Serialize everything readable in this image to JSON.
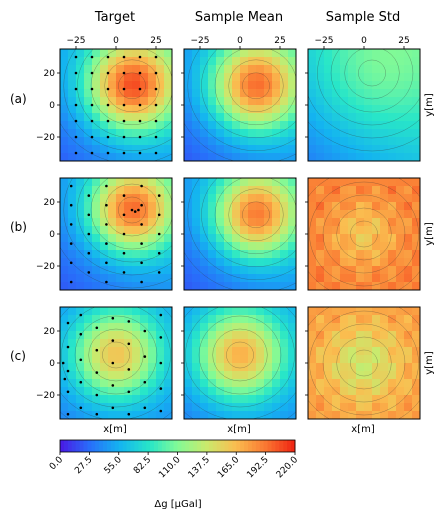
{
  "chart_data": {
    "type": "heatmap",
    "column_titles": [
      "Target",
      "Sample Mean",
      "Sample Std"
    ],
    "row_labels": [
      "(a)",
      "(b)",
      "(c)"
    ],
    "xlabel": "x[m]",
    "ylabel": "y[m]",
    "xlim": [
      -35,
      35
    ],
    "ylim": [
      -35,
      35
    ],
    "xticks": [
      -25,
      0,
      25
    ],
    "yticks": [
      -20,
      0,
      20
    ],
    "colormap": "rainbow",
    "colorbar": {
      "label": "Δg [μGal]",
      "min": 0,
      "max": 220,
      "ticks": [
        "0.0",
        "27.5",
        "55.0",
        "82.5",
        "110.0",
        "137.5",
        "165.0",
        "192.5",
        "220.0"
      ]
    },
    "fields": [
      [
        {
          "peak": [
            10,
            12
          ],
          "amp": 155,
          "spread": 20,
          "base": 45,
          "tilt": 0.35
        },
        {
          "peak": [
            10,
            12
          ],
          "amp": 150,
          "spread": 20,
          "base": 40,
          "tilt": 0.3
        },
        {
          "peak": [
            5,
            20
          ],
          "amp": 35,
          "spread": 30,
          "base": 60,
          "tilt": 0.4
        }
      ],
      [
        {
          "peak": [
            10,
            15
          ],
          "amp": 150,
          "spread": 19,
          "base": 40,
          "tilt": 0.3
        },
        {
          "peak": [
            10,
            12
          ],
          "amp": 145,
          "spread": 19,
          "base": 40,
          "tilt": 0.3
        },
        {
          "peak": [
            0,
            0
          ],
          "amp": -30,
          "spread": 15,
          "base": 190,
          "tilt": 0.0
        }
      ],
      [
        {
          "peak": [
            0,
            5
          ],
          "amp": 120,
          "spread": 20,
          "base": 40,
          "tilt": 0.1
        },
        {
          "peak": [
            0,
            5
          ],
          "amp": 130,
          "spread": 20,
          "base": 40,
          "tilt": 0.1
        },
        {
          "peak": [
            0,
            0
          ],
          "amp": -40,
          "spread": 18,
          "base": 180,
          "tilt": 0.0
        }
      ]
    ],
    "sample_points": [
      [
        [
          -25,
          -30
        ],
        [
          -25,
          -20
        ],
        [
          -25,
          -10
        ],
        [
          -25,
          0
        ],
        [
          -25,
          10
        ],
        [
          -25,
          20
        ],
        [
          -25,
          30
        ],
        [
          -15,
          -30
        ],
        [
          -15,
          -20
        ],
        [
          -15,
          -10
        ],
        [
          -15,
          0
        ],
        [
          -15,
          10
        ],
        [
          -15,
          20
        ],
        [
          -15,
          30
        ],
        [
          -5,
          -30
        ],
        [
          -5,
          -20
        ],
        [
          -5,
          -10
        ],
        [
          -5,
          0
        ],
        [
          -5,
          10
        ],
        [
          -5,
          20
        ],
        [
          -5,
          30
        ],
        [
          5,
          -30
        ],
        [
          5,
          -20
        ],
        [
          5,
          -10
        ],
        [
          5,
          0
        ],
        [
          5,
          10
        ],
        [
          5,
          20
        ],
        [
          5,
          30
        ],
        [
          15,
          -30
        ],
        [
          15,
          -20
        ],
        [
          15,
          -10
        ],
        [
          15,
          0
        ],
        [
          15,
          10
        ],
        [
          15,
          20
        ],
        [
          15,
          30
        ],
        [
          25,
          -30
        ],
        [
          25,
          -20
        ],
        [
          25,
          -10
        ],
        [
          25,
          0
        ],
        [
          25,
          10
        ],
        [
          25,
          20
        ],
        [
          25,
          30
        ]
      ],
      [
        [
          -28,
          -30
        ],
        [
          -28,
          -18
        ],
        [
          -28,
          -6
        ],
        [
          -28,
          6
        ],
        [
          -28,
          18
        ],
        [
          -28,
          30
        ],
        [
          -17,
          -24
        ],
        [
          -17,
          -12
        ],
        [
          -17,
          0
        ],
        [
          -17,
          12
        ],
        [
          -17,
          24
        ],
        [
          -6,
          -30
        ],
        [
          -6,
          -18
        ],
        [
          -6,
          -6
        ],
        [
          -6,
          6
        ],
        [
          -6,
          18
        ],
        [
          -6,
          30
        ],
        [
          5,
          -24
        ],
        [
          5,
          -12
        ],
        [
          5,
          0
        ],
        [
          5,
          12
        ],
        [
          5,
          24
        ],
        [
          16,
          -30
        ],
        [
          16,
          -18
        ],
        [
          16,
          -6
        ],
        [
          16,
          6
        ],
        [
          16,
          18
        ],
        [
          16,
          30
        ],
        [
          27,
          -24
        ],
        [
          27,
          -12
        ],
        [
          27,
          0
        ],
        [
          27,
          12
        ],
        [
          27,
          24
        ],
        [
          10,
          15
        ],
        [
          12,
          14
        ],
        [
          14,
          15
        ]
      ],
      [
        [
          -30,
          -32
        ],
        [
          -30,
          -18
        ],
        [
          -30,
          -5
        ],
        [
          -30,
          10
        ],
        [
          -30,
          25
        ],
        [
          -22,
          -28
        ],
        [
          -22,
          -12
        ],
        [
          -22,
          2
        ],
        [
          -22,
          18
        ],
        [
          -22,
          30
        ],
        [
          -12,
          -32
        ],
        [
          -12,
          -20
        ],
        [
          -12,
          -6
        ],
        [
          -12,
          8
        ],
        [
          -12,
          22
        ],
        [
          -2,
          -28
        ],
        [
          -2,
          -14
        ],
        [
          -2,
          0
        ],
        [
          -2,
          14
        ],
        [
          -2,
          28
        ],
        [
          8,
          -32
        ],
        [
          8,
          -18
        ],
        [
          8,
          -4
        ],
        [
          8,
          12
        ],
        [
          8,
          26
        ],
        [
          18,
          -28
        ],
        [
          18,
          -12
        ],
        [
          18,
          4
        ],
        [
          18,
          20
        ],
        [
          28,
          -30
        ],
        [
          28,
          -16
        ],
        [
          28,
          0
        ],
        [
          28,
          16
        ],
        [
          28,
          30
        ],
        [
          -32,
          -10
        ],
        [
          -33,
          0
        ]
      ]
    ]
  }
}
